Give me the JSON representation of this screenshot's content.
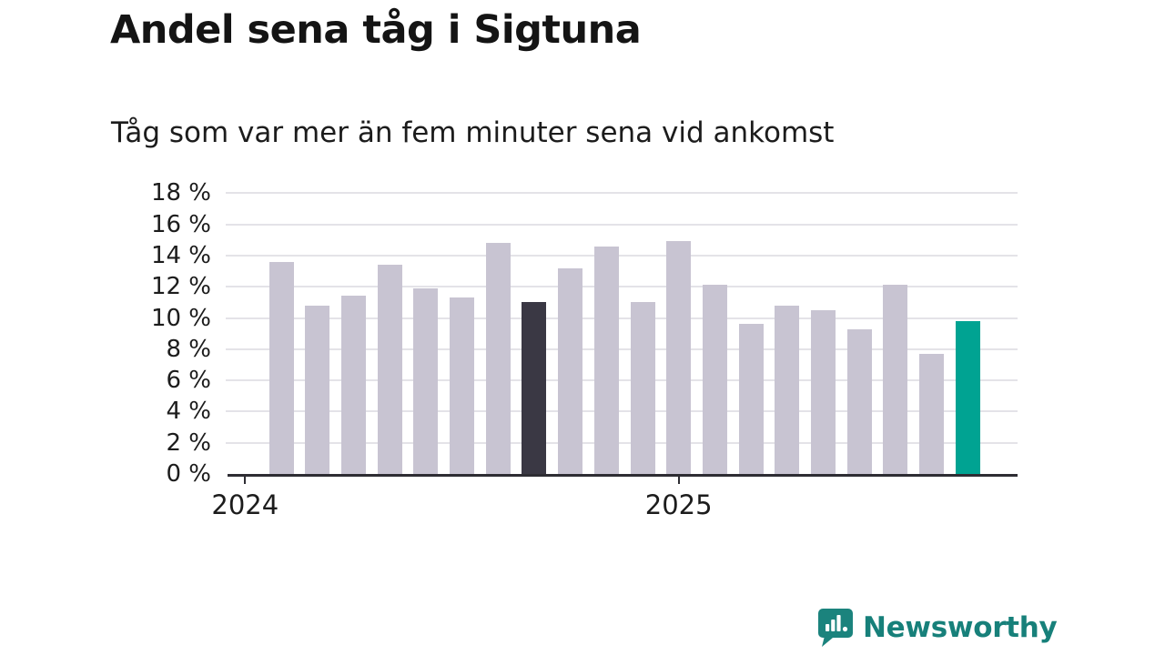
{
  "title": "Andel sena tåg i Sigtuna",
  "subtitle": "Tåg som var mer än fem minuter sena vid ankomst",
  "branding": {
    "name": "Newsworthy",
    "icon": "newsworthy-bubble-chart-icon",
    "color": "#17807a"
  },
  "chart_data": {
    "type": "bar",
    "title": "Andel sena tåg i Sigtuna",
    "subtitle": "Tåg som var mer än fem minuter sena vid ankomst",
    "unit": "%",
    "frequency": "monthly",
    "values": [
      13.6,
      10.8,
      11.4,
      13.4,
      11.9,
      11.3,
      14.8,
      11.0,
      13.2,
      14.6,
      11.0,
      14.9,
      12.1,
      9.6,
      10.8,
      10.5,
      9.3,
      12.1,
      7.7,
      9.8
    ],
    "highlight_bar_index": 7,
    "latest_bar_index": 19,
    "ylim": [
      0,
      18
    ],
    "ytick_step": 2,
    "ytick_labels": [
      "0 %",
      "2 %",
      "4 %",
      "6 %",
      "8 %",
      "10 %",
      "12 %",
      "14 %",
      "16 %",
      "18 %"
    ],
    "xtick_labels": [
      "2024",
      "2025"
    ],
    "xtick_bar_boundary_index": [
      -1,
      11
    ],
    "grid": true,
    "legend": "none",
    "colors": {
      "bar": "#c8c4d2",
      "highlight": "#3a3844",
      "latest": "#00a392",
      "grid": "#e4e3e8",
      "axis": "#2e2d33"
    }
  }
}
